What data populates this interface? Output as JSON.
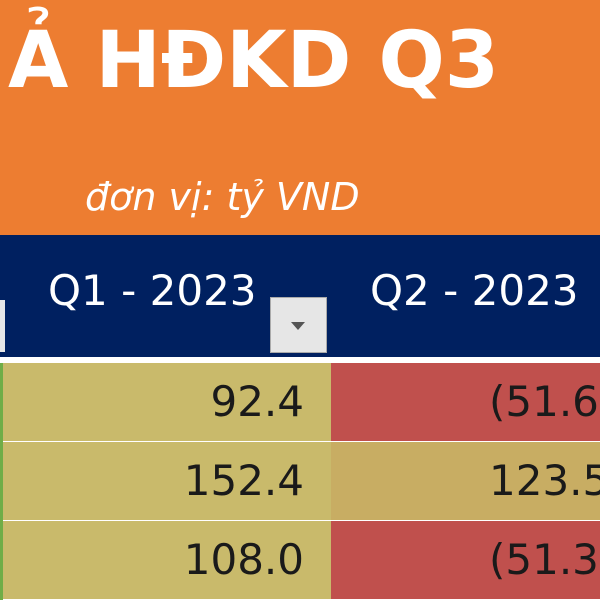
{
  "title": "Ả HĐKD Q3",
  "subtitle": "đơn vị: tỷ VND",
  "table": {
    "headers": [
      "Q1 - 2023",
      "Q2 - 2023"
    ],
    "rows": [
      [
        "92.4",
        "(51.6"
      ],
      [
        "152.4",
        "123.5"
      ],
      [
        "108.0",
        "(51.3"
      ]
    ]
  }
}
